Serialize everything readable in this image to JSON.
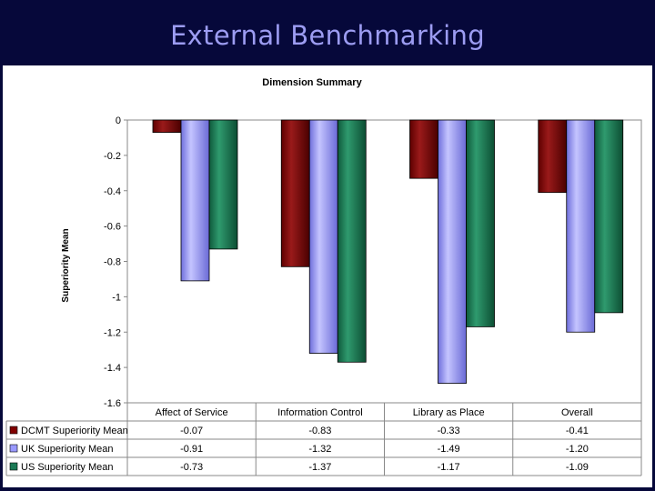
{
  "slide": {
    "title": "External Benchmarking"
  },
  "chart_data": {
    "type": "bar",
    "title": "Dimension Summary",
    "xlabel": "",
    "ylabel": "Superiority Mean",
    "ylim": [
      -1.6,
      0
    ],
    "yticks": [
      "0",
      "-0.2",
      "-0.4",
      "-0.6",
      "-0.8",
      "-1",
      "-1.2",
      "-1.4",
      "-1.6"
    ],
    "grid": false,
    "legend": "data table below chart",
    "categories": [
      "Affect of Service",
      "Information Control",
      "Library as Place",
      "Overall"
    ],
    "series": [
      {
        "name": "DCMT Superiority Mean",
        "color": "#800000",
        "values": [
          -0.07,
          -0.83,
          -0.33,
          -0.41
        ],
        "labels": [
          "-0.07",
          "-0.83",
          "-0.33",
          "-0.41"
        ]
      },
      {
        "name": "UK Superiority Mean",
        "color": "#9999ff",
        "values": [
          -0.91,
          -1.32,
          -1.49,
          -1.2
        ],
        "labels": [
          "-0.91",
          "-1.32",
          "-1.49",
          "-1.20"
        ]
      },
      {
        "name": "US Superiority Mean",
        "color": "#1b7a55",
        "values": [
          -0.73,
          -1.37,
          -1.17,
          -1.09
        ],
        "labels": [
          "-0.73",
          "-1.37",
          "-1.17",
          "-1.09"
        ]
      }
    ]
  }
}
